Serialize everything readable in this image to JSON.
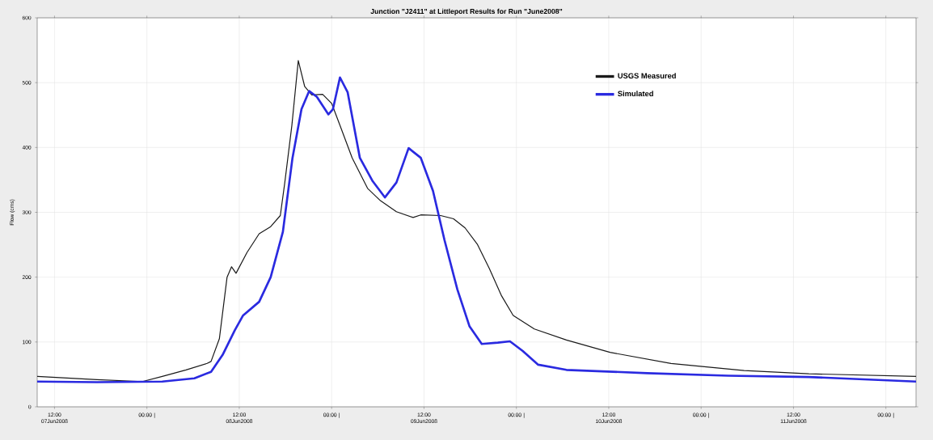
{
  "chart_data": {
    "type": "line",
    "title": "Junction \"J2411\" at Littleport Results for Run \"June2008\"",
    "ylabel": "Flow (cms)",
    "xlim": [
      "2008-06-07T09:45",
      "2008-06-12T03:55"
    ],
    "ylim": [
      0,
      600
    ],
    "yticks": [
      0,
      100,
      200,
      300,
      400,
      500,
      600
    ],
    "xticks": [
      {
        "value": "2008-06-07T12:00",
        "label": "12:00 07Jun2008"
      },
      {
        "value": "2008-06-08T00:00",
        "label": "00:00 |"
      },
      {
        "value": "2008-06-08T12:00",
        "label": "12:00 08Jun2008"
      },
      {
        "value": "2008-06-09T00:00",
        "label": "00:00 |"
      },
      {
        "value": "2008-06-09T12:00",
        "label": "12:00 09Jun2008"
      },
      {
        "value": "2008-06-10T00:00",
        "label": "00:00 |"
      },
      {
        "value": "2008-06-10T12:00",
        "label": "12:00 10Jun2008"
      },
      {
        "value": "2008-06-11T00:00",
        "label": "00:00 |"
      },
      {
        "value": "2008-06-11T12:00",
        "label": "12:00 11Jun2008"
      },
      {
        "value": "2008-06-12T00:00",
        "label": "00:00 |"
      }
    ],
    "grid": true,
    "legend": "top right",
    "marker": "none",
    "line_style": "solid",
    "series": [
      {
        "name": "USGS Measured",
        "color": "#1a1a1a",
        "x": [
          "2008-06-07T09:45",
          "2008-06-07T17:30",
          "2008-06-07T23:25",
          "2008-06-08T02:00",
          "2008-06-08T05:05",
          "2008-06-08T07:50",
          "2008-06-08T08:20",
          "2008-06-08T09:25",
          "2008-06-08T10:25",
          "2008-06-08T11:00",
          "2008-06-08T11:35",
          "2008-06-08T13:00",
          "2008-06-08T14:35",
          "2008-06-08T16:05",
          "2008-06-08T17:20",
          "2008-06-08T17:55",
          "2008-06-08T18:50",
          "2008-06-08T19:40",
          "2008-06-08T20:30",
          "2008-06-08T21:25",
          "2008-06-08T22:50",
          "2008-06-09T00:00",
          "2008-06-09T01:05",
          "2008-06-09T02:40",
          "2008-06-09T04:40",
          "2008-06-09T06:20",
          "2008-06-09T08:25",
          "2008-06-09T10:35",
          "2008-06-09T11:35",
          "2008-06-09T14:10",
          "2008-06-09T15:50",
          "2008-06-09T17:20",
          "2008-06-09T18:55",
          "2008-06-09T20:30",
          "2008-06-09T22:05",
          "2008-06-09T23:35",
          "2008-06-10T02:20",
          "2008-06-10T06:30",
          "2008-06-10T12:10",
          "2008-06-10T20:05",
          "2008-06-11T05:35",
          "2008-06-11T14:00",
          "2008-06-12T03:55"
        ],
        "values": [
          47,
          42,
          39,
          47,
          57,
          67,
          70,
          105,
          200,
          216,
          206,
          238,
          267,
          278,
          295,
          346,
          434,
          534,
          494,
          481,
          482,
          468,
          434,
          384,
          337,
          318,
          301,
          292,
          296,
          295,
          290,
          276,
          251,
          213,
          171,
          141,
          120,
          103,
          84,
          67,
          56,
          51,
          47
        ]
      },
      {
        "name": "Simulated",
        "color": "#2a2ae0",
        "x": [
          "2008-06-07T09:45",
          "2008-06-07T17:30",
          "2008-06-08T02:00",
          "2008-06-08T06:10",
          "2008-06-08T08:20",
          "2008-06-08T09:50",
          "2008-06-08T11:25",
          "2008-06-08T12:30",
          "2008-06-08T14:35",
          "2008-06-08T16:05",
          "2008-06-08T17:40",
          "2008-06-08T18:55",
          "2008-06-08T20:05",
          "2008-06-08T21:05",
          "2008-06-08T22:05",
          "2008-06-08T23:35",
          "2008-06-09T00:10",
          "2008-06-09T01:05",
          "2008-06-09T02:05",
          "2008-06-09T03:40",
          "2008-06-09T05:20",
          "2008-06-09T06:55",
          "2008-06-09T08:25",
          "2008-06-09T10:00",
          "2008-06-09T11:35",
          "2008-06-09T13:10",
          "2008-06-09T14:40",
          "2008-06-09T16:20",
          "2008-06-09T17:55",
          "2008-06-09T19:30",
          "2008-06-09T21:35",
          "2008-06-09T23:10",
          "2008-06-10T00:50",
          "2008-06-10T02:50",
          "2008-06-10T06:30",
          "2008-06-10T17:00",
          "2008-06-11T03:30",
          "2008-06-11T14:00",
          "2008-06-12T03:55"
        ],
        "values": [
          39,
          38,
          39,
          44,
          54,
          80,
          118,
          141,
          162,
          200,
          270,
          384,
          459,
          487,
          478,
          451,
          459,
          508,
          485,
          384,
          348,
          323,
          346,
          399,
          384,
          333,
          257,
          181,
          124,
          97,
          99,
          101,
          86,
          65,
          57,
          52,
          48,
          46,
          39
        ]
      }
    ]
  }
}
